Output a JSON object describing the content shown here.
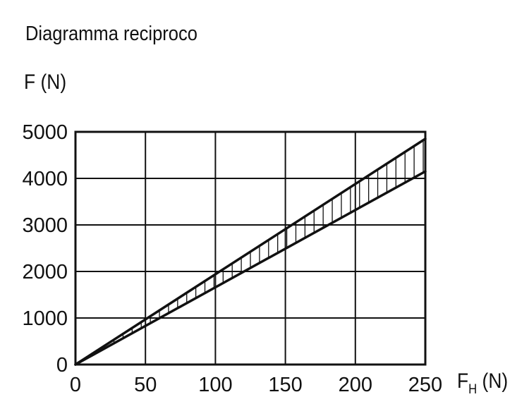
{
  "chart_data": {
    "type": "area",
    "title": "Diagramma reciproco",
    "ylabel": "F (N)",
    "xlabel_main": "F",
    "xlabel_sub": "H",
    "xlabel_unit": " (N)",
    "xlim": [
      0,
      250
    ],
    "ylim": [
      0,
      5000
    ],
    "x_ticks": [
      0,
      50,
      100,
      150,
      200,
      250
    ],
    "y_ticks": [
      0,
      1000,
      2000,
      3000,
      4000,
      5000
    ],
    "grid": true,
    "series": [
      {
        "x": [
          0,
          250
        ],
        "y": [
          0,
          4850
        ]
      },
      {
        "x": [
          0,
          250
        ],
        "y": [
          0,
          4150
        ]
      }
    ],
    "hatched_band": true
  }
}
